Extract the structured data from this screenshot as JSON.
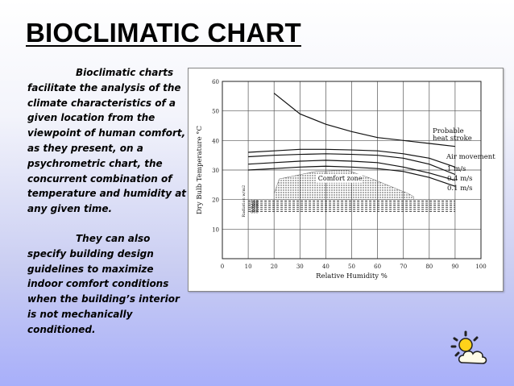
{
  "slide": {
    "title": "BIOCLIMATIC CHART",
    "paragraph1": "Bioclimatic charts facilitate the analysis of the climate characteristics of a given location from the viewpoint of human comfort, as they present, on a psychrometric chart, the concurrent combination of temperature and humidity at any given time.",
    "paragraph2": "They can also specify building design guidelines to maximize indoor comfort conditions when the building’s interior is not mechanically conditioned."
  },
  "decoration": {
    "icon": "sun-cloud-icon"
  },
  "chart_data": {
    "type": "line",
    "xlabel": "Relative Humidity %",
    "ylabel": "Dry Bulb Temperature °C",
    "xlim": [
      0,
      100
    ],
    "ylim": [
      0,
      60
    ],
    "x_ticks": [
      0,
      10,
      20,
      30,
      40,
      50,
      60,
      70,
      80,
      90,
      100
    ],
    "y_ticks": [
      10,
      20,
      30,
      40,
      50,
      60
    ],
    "grid": true,
    "series": [
      {
        "name": "Probable heat stroke",
        "x": [
          20,
          30,
          40,
          50,
          60,
          70,
          80,
          90
        ],
        "y": [
          56,
          49,
          45.5,
          43,
          41,
          40,
          39,
          38
        ]
      },
      {
        "name": "",
        "x": [
          10,
          20,
          30,
          40,
          50,
          60,
          70,
          80,
          90
        ],
        "y": [
          36,
          36.5,
          37,
          37,
          36.8,
          36.5,
          35.5,
          34,
          31
        ]
      },
      {
        "name": "1 m/s",
        "x": [
          10,
          20,
          30,
          40,
          50,
          60,
          70,
          80,
          90
        ],
        "y": [
          34.5,
          35,
          35.3,
          35.5,
          35.3,
          35,
          34,
          32,
          28.5
        ]
      },
      {
        "name": "0.4 m/s",
        "x": [
          10,
          20,
          30,
          40,
          50,
          60,
          70,
          80,
          90
        ],
        "y": [
          32,
          32.5,
          33,
          33.3,
          33,
          32.5,
          31,
          29,
          26.5
        ]
      },
      {
        "name": "0.1 m/s",
        "x": [
          10,
          20,
          30,
          40,
          50,
          60,
          70,
          80,
          90
        ],
        "y": [
          30,
          30.5,
          31,
          31.3,
          31,
          30.5,
          29.5,
          27.5,
          24.5
        ]
      }
    ],
    "comfort_zone": {
      "label": "Comfort zone",
      "polygon_x": [
        20,
        22,
        36,
        48,
        58,
        72,
        74,
        74,
        20
      ],
      "polygon_y": [
        22,
        27,
        29.5,
        30,
        27,
        22,
        21,
        20,
        20
      ]
    },
    "radiation_band": {
      "label": "Radiation w/m2",
      "levels": [
        "100",
        "200",
        "300",
        "400",
        "500",
        "600"
      ],
      "x_start": 10,
      "x_end": 90,
      "y": [
        19.5,
        18.8,
        18.1,
        17.4,
        16.7,
        16
      ]
    },
    "annotations": [
      "Probable heat stroke",
      "Air movement",
      "1 m/s",
      "0.4 m/s",
      "0.1 m/s",
      "Comfort zone",
      "Radiation w/m2"
    ]
  }
}
